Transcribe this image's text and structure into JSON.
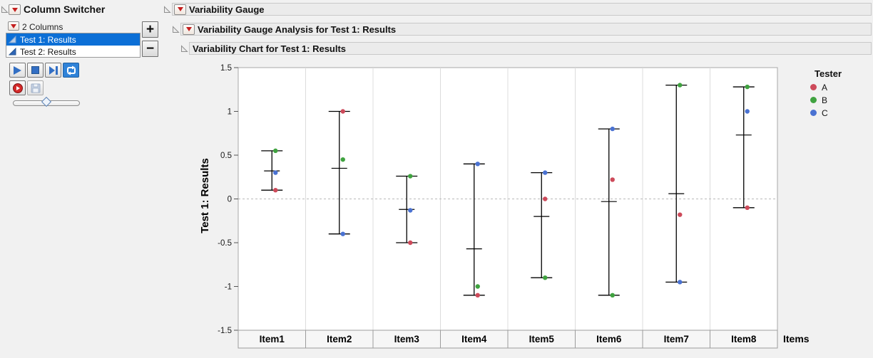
{
  "column_switcher": {
    "title": "Column Switcher",
    "columns_label": "2 Columns",
    "items": [
      {
        "label": "Test 1: Results",
        "selected": true
      },
      {
        "label": "Test 2: Results",
        "selected": false
      }
    ],
    "add_label": "+",
    "remove_label": "−",
    "slider_position": 0.48
  },
  "headers": {
    "h1": "Variability Gauge",
    "h2": "Variability Gauge Analysis for Test 1: Results",
    "h3": "Variability Chart for Test 1: Results"
  },
  "chart_data": {
    "type": "scatter",
    "subtype": "variability-gauge-chart",
    "title": "Variability Chart for Test 1: Results",
    "categories": [
      "Item1",
      "Item2",
      "Item3",
      "Item4",
      "Item5",
      "Item6",
      "Item7",
      "Item8"
    ],
    "series": [
      {
        "name": "A",
        "color": "#cd4a5a",
        "values": [
          0.1,
          1.0,
          -0.5,
          -1.1,
          0.0,
          0.22,
          -0.18,
          -0.1
        ]
      },
      {
        "name": "B",
        "color": "#3fa23f",
        "values": [
          0.55,
          0.45,
          0.26,
          -1.0,
          -0.9,
          -1.1,
          1.3,
          1.28
        ]
      },
      {
        "name": "C",
        "color": "#4a72d2",
        "values": [
          0.3,
          -0.4,
          -0.13,
          0.4,
          0.3,
          0.8,
          -0.95,
          1.0
        ]
      }
    ],
    "group_means": [
      0.32,
      0.35,
      -0.12,
      -0.57,
      -0.2,
      -0.03,
      0.06,
      0.73
    ],
    "xlabel": "Items",
    "ylabel": "Test 1: Results",
    "ylim": [
      -1.5,
      1.5
    ],
    "yticks": [
      1.5,
      1,
      0.5,
      0,
      -0.5,
      -1,
      -1.5
    ],
    "zero_reference_line": 0,
    "legend_title": "Tester",
    "legend_position": "right",
    "grid": "column-separators"
  }
}
